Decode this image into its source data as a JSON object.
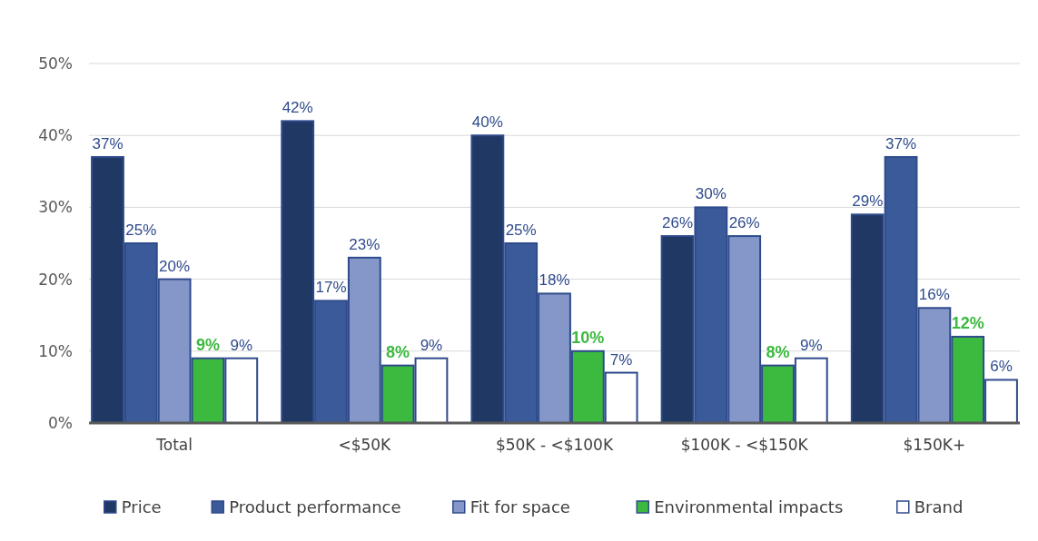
{
  "chart_data": {
    "type": "bar",
    "categories": [
      "Total",
      "<$50K",
      "$50K - <$100K",
      "$100K - <$150K",
      "$150K+"
    ],
    "series": [
      {
        "name": "Price",
        "color": "#1f3864",
        "values": [
          37,
          42,
          40,
          26,
          29
        ],
        "value_labels": [
          "37%",
          "42%",
          "40%",
          "26%",
          "29%"
        ]
      },
      {
        "name": "Product performance",
        "color": "#3b5a9a",
        "values": [
          25,
          17,
          25,
          30,
          37
        ],
        "value_labels": [
          "25%",
          "17%",
          "25%",
          "30%",
          "37%"
        ]
      },
      {
        "name": "Fit for space",
        "color": "#8497c8",
        "values": [
          20,
          23,
          18,
          26,
          16
        ],
        "value_labels": [
          "20%",
          "23%",
          "18%",
          "26%",
          "16%"
        ]
      },
      {
        "name": "Environmental impacts",
        "color": "#3cb93f",
        "values": [
          9,
          8,
          10,
          8,
          12
        ],
        "value_labels": [
          "9%",
          "8%",
          "10%",
          "8%",
          "12%"
        ]
      },
      {
        "name": "Brand",
        "color": "#ffffff",
        "values": [
          9,
          9,
          7,
          9,
          6
        ],
        "value_labels": [
          "9%",
          "9%",
          "7%",
          "9%",
          "6%"
        ]
      }
    ],
    "ylim": [
      0,
      50
    ],
    "yticks": [
      {
        "value": 0,
        "label": "0%"
      },
      {
        "value": 10,
        "label": "10%"
      },
      {
        "value": 20,
        "label": "20%"
      },
      {
        "value": 30,
        "label": "30%"
      },
      {
        "value": 40,
        "label": "40%"
      },
      {
        "value": 50,
        "label": "50%"
      }
    ],
    "grid": "y",
    "legend": "bottom"
  }
}
